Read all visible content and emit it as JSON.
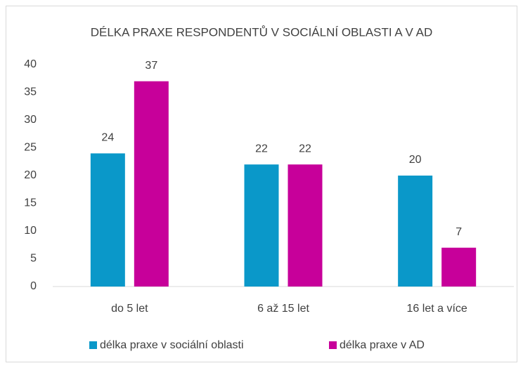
{
  "chart_data": {
    "type": "bar",
    "title": "DÉLKA PRAXE RESPONDENTŮ V SOCIÁLNÍ OBLASTI A V AD",
    "categories": [
      "do 5 let",
      "6 až 15 let",
      "16 let a více"
    ],
    "series": [
      {
        "name": "délka praxe v sociální oblasti",
        "color": "#0a98c9",
        "values": [
          24,
          22,
          20
        ]
      },
      {
        "name": "délka praxe v AD",
        "color": "#c7009a",
        "values": [
          37,
          22,
          7
        ]
      }
    ],
    "ylim": [
      0,
      40
    ],
    "yticks": [
      0,
      5,
      10,
      15,
      20,
      25,
      30,
      35,
      40
    ],
    "grid": false,
    "legend": "bottom"
  }
}
